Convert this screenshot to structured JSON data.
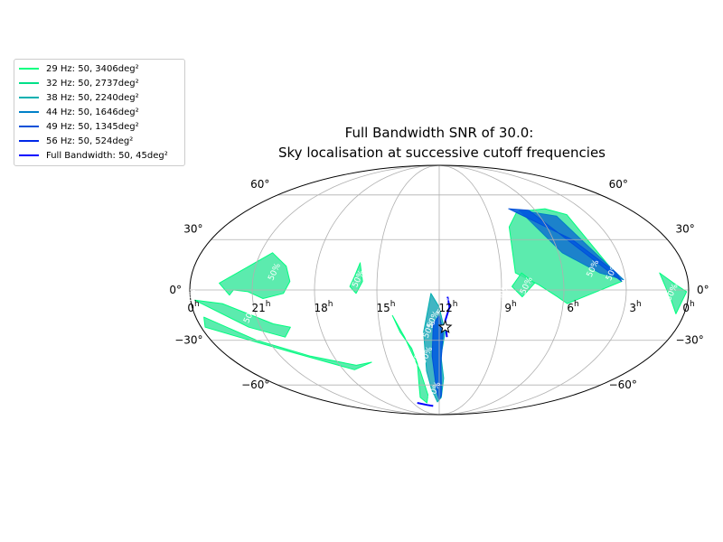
{
  "chart_data": {
    "type": "area",
    "projection": "mollweide",
    "title_line1": "Full Bandwidth SNR of 30.0:",
    "title_line2": "Sky localisation at successive cutoff frequencies",
    "grid": true,
    "legend_position": "upper-left outside",
    "ra_ticks": [
      {
        "value": 24,
        "label": "0",
        "sup": "h"
      },
      {
        "value": 21,
        "label": "21",
        "sup": "h"
      },
      {
        "value": 18,
        "label": "18",
        "sup": "h"
      },
      {
        "value": 15,
        "label": "15",
        "sup": "h"
      },
      {
        "value": 12,
        "label": "12",
        "sup": "h"
      },
      {
        "value": 9,
        "label": "9",
        "sup": "h"
      },
      {
        "value": 6,
        "label": "6",
        "sup": "h"
      },
      {
        "value": 3,
        "label": "3",
        "sup": "h"
      },
      {
        "value": 0,
        "label": "0",
        "sup": "h"
      }
    ],
    "dec_ticks": [
      {
        "value": 60,
        "label": "60°"
      },
      {
        "value": 30,
        "label": "30°"
      },
      {
        "value": 0,
        "label": "0°"
      },
      {
        "value": -30,
        "label": "−30°"
      },
      {
        "value": -60,
        "label": "−60°"
      }
    ],
    "source_marker": {
      "ra": 11.7,
      "dec": -22
    },
    "contour_label": "50%",
    "series": [
      {
        "name": "29 Hz: 50, 3406deg²",
        "color": "#00ff80",
        "fill": "#40e8a0",
        "regions": [
          [
            [
              20.4,
              22
            ],
            [
              19.5,
              14
            ],
            [
              19.2,
              5
            ],
            [
              19.5,
              -2
            ],
            [
              20.5,
              -5
            ],
            [
              21.2,
              -1
            ],
            [
              21.9,
              0
            ],
            [
              22.1,
              -3
            ],
            [
              22.6,
              4
            ]
          ],
          [
            [
              13.3,
              -45
            ],
            [
              13.5,
              -35
            ],
            [
              14.0,
              -25
            ],
            [
              14.3,
              -15
            ],
            [
              13.8,
              -28
            ],
            [
              13.2,
              -50
            ],
            [
              13.0,
              -68
            ],
            [
              13.4,
              -75
            ],
            [
              13.8,
              -70
            ],
            [
              13.5,
              -60
            ]
          ],
          [
            [
              8.1,
              38
            ],
            [
              7.2,
              48
            ],
            [
              5.3,
              50
            ],
            [
              4.3,
              46
            ],
            [
              3.2,
              5
            ],
            [
              5.8,
              -8
            ],
            [
              6.3,
              -4
            ],
            [
              7.2,
              3
            ],
            [
              8.3,
              10
            ]
          ],
          [
            [
              15.9,
              16
            ],
            [
              16.1,
              8
            ],
            [
              16.3,
              2
            ],
            [
              16.0,
              -2
            ],
            [
              15.7,
              5
            ]
          ],
          [
            [
              23.8,
              -6
            ],
            [
              22.5,
              -8
            ],
            [
              20.3,
              -20
            ],
            [
              19.5,
              -22
            ],
            [
              20.0,
              -28
            ],
            [
              21.6,
              -22
            ],
            [
              23.2,
              -10
            ]
          ],
          [
            [
              23.8,
              -22
            ],
            [
              22.4,
              -28
            ],
            [
              20.3,
              -37
            ],
            [
              17.3,
              -49
            ],
            [
              16.0,
              -44
            ],
            [
              17.0,
              -46
            ],
            [
              19.3,
              -40
            ],
            [
              21.6,
              -30
            ],
            [
              23.6,
              -16
            ]
          ],
          [
            [
              1.3,
              10
            ],
            [
              0.6,
              3
            ],
            [
              0.1,
              -1
            ],
            [
              0.4,
              -14
            ],
            [
              0.8,
              -6
            ]
          ],
          [
            [
              8.0,
              10
            ],
            [
              7.4,
              4
            ],
            [
              8.0,
              -4
            ],
            [
              8.5,
              2
            ]
          ]
        ]
      },
      {
        "name": "32 Hz: 50, 2737deg²",
        "color": "#00e088",
        "fill": "#30d8a8",
        "regions": []
      },
      {
        "name": "38 Hz: 50, 2240deg²",
        "color": "#00b0b0",
        "fill": "#20a8b8",
        "regions": [
          [
            [
              11.9,
              -40
            ],
            [
              11.7,
              -25
            ],
            [
              12.0,
              -10
            ],
            [
              12.4,
              -2
            ],
            [
              12.8,
              -25
            ],
            [
              12.8,
              -50
            ],
            [
              12.6,
              -64
            ],
            [
              12.2,
              -74
            ],
            [
              11.8,
              -70
            ],
            [
              11.7,
              -55
            ]
          ]
        ]
      },
      {
        "name": "44 Hz: 50, 1646deg²",
        "color": "#0080c8",
        "fill": "#1070d0",
        "regions": [
          [
            [
              7.0,
              49
            ],
            [
              5.0,
              45
            ],
            [
              3.1,
              6
            ],
            [
              4.2,
              10
            ],
            [
              5.8,
              22
            ]
          ]
        ]
      },
      {
        "name": "49 Hz: 50, 1345deg²",
        "color": "#0050d8",
        "fill": "#0058e0",
        "regions": [
          [
            [
              11.9,
              -45
            ],
            [
              11.8,
              -25
            ],
            [
              12.0,
              -15
            ],
            [
              12.3,
              -20
            ],
            [
              12.4,
              -40
            ],
            [
              12.2,
              -65
            ],
            [
              12.0,
              -72
            ],
            [
              11.8,
              -68
            ]
          ],
          [
            [
              7.6,
              50
            ],
            [
              6.4,
              49
            ],
            [
              3.2,
              5
            ],
            [
              3.4,
              10
            ],
            [
              5.0,
              30
            ]
          ]
        ]
      },
      {
        "name": "56 Hz: 50, 524deg²",
        "color": "#0028e8",
        "fill": "#0030e8",
        "regions": []
      },
      {
        "name": "Full Bandwidth: 50, 45deg²",
        "color": "#0000ff",
        "fill": "none",
        "regions": [
          [
            [
              11.6,
              -28
            ],
            [
              11.7,
              -18
            ],
            [
              11.5,
              -10
            ],
            [
              11.6,
              -4
            ]
          ],
          [
            [
              14.5,
              -75
            ],
            [
              13.5,
              -77
            ],
            [
              12.8,
              -78
            ]
          ]
        ]
      }
    ],
    "contour_label_positions": [
      {
        "ra": 19.9,
        "dec": 10
      },
      {
        "ra": 15.8,
        "dec": 6
      },
      {
        "ra": 23.9,
        "dec": -5
      },
      {
        "ra": 21.2,
        "dec": -15
      },
      {
        "ra": 13.5,
        "dec": -45
      },
      {
        "ra": 12.6,
        "dec": -40
      },
      {
        "ra": 12.2,
        "dec": -18
      },
      {
        "ra": 12.4,
        "dec": -24
      },
      {
        "ra": 12.2,
        "dec": -65
      },
      {
        "ra": 11.7,
        "dec": -10
      },
      {
        "ra": 7.7,
        "dec": 2
      },
      {
        "ra": 8.8,
        "dec": -2
      },
      {
        "ra": 4.4,
        "dec": 12
      },
      {
        "ra": 3.5,
        "dec": 10
      },
      {
        "ra": 0.7,
        "dec": -2
      }
    ]
  }
}
